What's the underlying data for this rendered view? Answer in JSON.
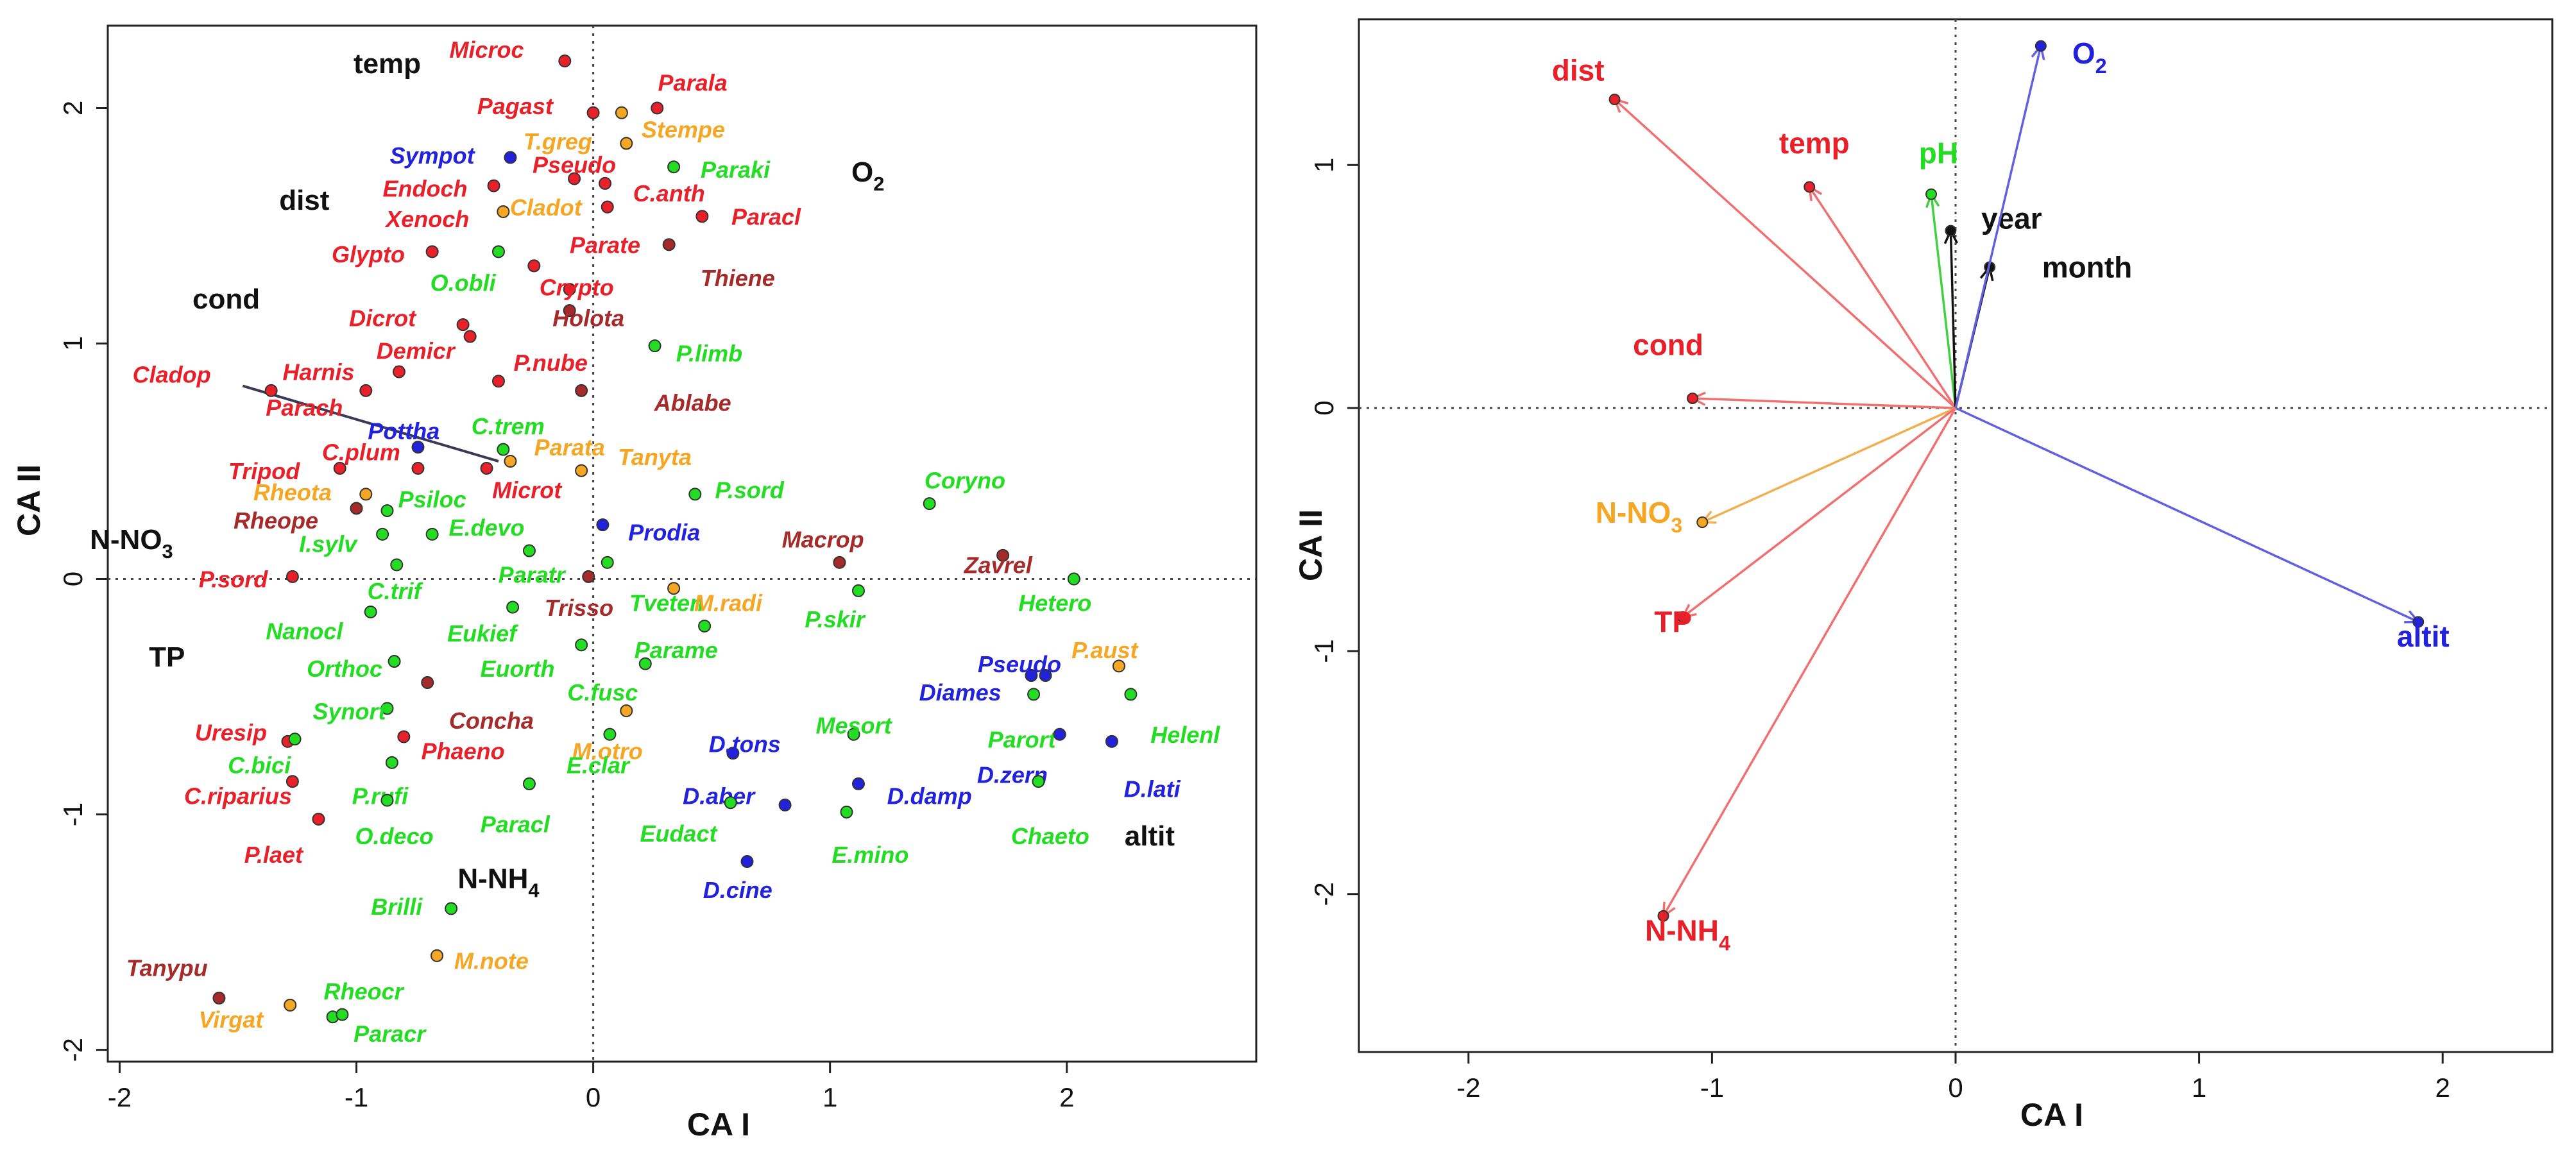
{
  "colors": {
    "red": "#e8202a",
    "darkred": "#a52a2a",
    "blue": "#2222dd",
    "green": "#22dd22",
    "orange": "#f5a623",
    "black": "#111111"
  },
  "chart_data": [
    {
      "type": "scatter",
      "title": "",
      "xlabel": "CA I",
      "ylabel": "CA II",
      "xlim": [
        -2.05,
        2.8
      ],
      "ylim": [
        -2.05,
        2.35
      ],
      "xticks": [
        "-2",
        "-1",
        "0",
        "1",
        "2"
      ],
      "yticks": [
        "-2",
        "-1",
        "0",
        "1",
        "2"
      ],
      "xtick_values": [
        -2,
        -1,
        0,
        1,
        2
      ],
      "ytick_values": [
        -2,
        -1,
        0,
        1,
        2
      ],
      "env_labels": [
        {
          "label": "temp",
          "x": -0.87,
          "y": 2.18
        },
        {
          "label": "dist",
          "x": -1.22,
          "y": 1.6
        },
        {
          "label": "cond",
          "x": -1.55,
          "y": 1.18
        },
        {
          "label": "O2",
          "x": 1.16,
          "y": 1.72
        },
        {
          "label": "N-NO3",
          "x": -1.95,
          "y": 0.16
        },
        {
          "label": "TP",
          "x": -1.8,
          "y": -0.34
        },
        {
          "label": "N-NH4",
          "x": -0.4,
          "y": -1.28
        },
        {
          "label": "altit",
          "x": 2.35,
          "y": -1.1
        }
      ],
      "arrow": {
        "x1": -1.48,
        "y1": 0.82,
        "x2": -0.4,
        "y2": 0.5
      },
      "points": [
        {
          "label": "Microc",
          "x": -0.12,
          "y": 2.2,
          "color": "red",
          "lx": -0.45,
          "ly": 2.24
        },
        {
          "label": "Pagast",
          "x": 0.0,
          "y": 1.98,
          "color": "red",
          "lx": -0.33,
          "ly": 2.0
        },
        {
          "label": "Parala",
          "x": 0.27,
          "y": 2.0,
          "color": "red",
          "lx": 0.42,
          "ly": 2.1
        },
        {
          "label": "Stempe",
          "x": 0.12,
          "y": 1.98,
          "color": "orange",
          "lx": 0.38,
          "ly": 1.9
        },
        {
          "label": "T.greg",
          "x": 0.14,
          "y": 1.85,
          "color": "orange",
          "lx": -0.15,
          "ly": 1.85
        },
        {
          "label": "Sympot",
          "x": -0.35,
          "y": 1.79,
          "color": "blue",
          "lx": -0.68,
          "ly": 1.79
        },
        {
          "label": "Pseudo",
          "x": -0.08,
          "y": 1.7,
          "color": "red",
          "lx": -0.08,
          "ly": 1.75
        },
        {
          "label": "Paraki",
          "x": 0.34,
          "y": 1.75,
          "color": "green",
          "lx": 0.6,
          "ly": 1.73
        },
        {
          "label": "Endoch",
          "x": -0.42,
          "y": 1.67,
          "color": "red",
          "lx": -0.71,
          "ly": 1.65
        },
        {
          "label": "C.anth",
          "x": 0.05,
          "y": 1.68,
          "color": "red",
          "lx": 0.32,
          "ly": 1.63
        },
        {
          "label": "Cladot",
          "x": -0.38,
          "y": 1.56,
          "color": "orange",
          "lx": -0.2,
          "ly": 1.57
        },
        {
          "label": "Xenoch",
          "x": 0.06,
          "y": 1.58,
          "color": "red",
          "lx": -0.7,
          "ly": 1.52
        },
        {
          "label": "Paracl",
          "x": 0.46,
          "y": 1.54,
          "color": "red",
          "lx": 0.73,
          "ly": 1.53
        },
        {
          "label": "Glypto",
          "x": -0.68,
          "y": 1.39,
          "color": "red",
          "lx": -0.95,
          "ly": 1.37
        },
        {
          "label": "O.obli",
          "x": -0.4,
          "y": 1.39,
          "color": "green",
          "lx": -0.55,
          "ly": 1.25
        },
        {
          "label": "Parate",
          "x": -0.25,
          "y": 1.33,
          "color": "red",
          "lx": 0.05,
          "ly": 1.41
        },
        {
          "label": "Thiene",
          "x": 0.32,
          "y": 1.42,
          "color": "darkred",
          "lx": 0.61,
          "ly": 1.27
        },
        {
          "label": "Crypto",
          "x": -0.1,
          "y": 1.23,
          "color": "red",
          "lx": -0.07,
          "ly": 1.23
        },
        {
          "label": "Holota",
          "x": -0.1,
          "y": 1.14,
          "color": "darkred",
          "lx": -0.02,
          "ly": 1.1
        },
        {
          "label": "Dicrot",
          "x": -0.55,
          "y": 1.08,
          "color": "red",
          "lx": -0.89,
          "ly": 1.1
        },
        {
          "label": "Demicr",
          "x": -0.52,
          "y": 1.03,
          "color": "red",
          "lx": -0.75,
          "ly": 0.96
        },
        {
          "label": "P.limb",
          "x": 0.26,
          "y": 0.99,
          "color": "green",
          "lx": 0.49,
          "ly": 0.95
        },
        {
          "label": "P.nube",
          "x": -0.4,
          "y": 0.84,
          "color": "red",
          "lx": -0.18,
          "ly": 0.91
        },
        {
          "label": "Harnis",
          "x": -0.96,
          "y": 0.8,
          "color": "red",
          "lx": -1.16,
          "ly": 0.87
        },
        {
          "label": "Ablabe",
          "x": -0.05,
          "y": 0.8,
          "color": "darkred",
          "lx": 0.42,
          "ly": 0.74
        },
        {
          "label": "Parach",
          "x": -0.82,
          "y": 0.88,
          "color": "red",
          "lx": -1.22,
          "ly": 0.72
        },
        {
          "label": "Cladop",
          "x": -1.36,
          "y": 0.8,
          "color": "red",
          "lx": -1.78,
          "ly": 0.86
        },
        {
          "label": "Pottha",
          "x": -0.74,
          "y": 0.56,
          "color": "blue",
          "lx": -0.8,
          "ly": 0.62
        },
        {
          "label": "C.trem",
          "x": -0.38,
          "y": 0.55,
          "color": "green",
          "lx": -0.36,
          "ly": 0.64
        },
        {
          "label": "Parata",
          "x": -0.35,
          "y": 0.5,
          "color": "orange",
          "lx": -0.1,
          "ly": 0.55
        },
        {
          "label": "Tanyta",
          "x": -0.05,
          "y": 0.46,
          "color": "orange",
          "lx": 0.26,
          "ly": 0.51
        },
        {
          "label": "C.plum",
          "x": -0.74,
          "y": 0.47,
          "color": "red",
          "lx": -0.98,
          "ly": 0.53
        },
        {
          "label": "Tripod",
          "x": -1.07,
          "y": 0.47,
          "color": "red",
          "lx": -1.39,
          "ly": 0.45
        },
        {
          "label": "Coryno",
          "x": 1.42,
          "y": 0.32,
          "color": "green",
          "lx": 1.57,
          "ly": 0.41
        },
        {
          "label": "Rheota",
          "x": -0.96,
          "y": 0.36,
          "color": "orange",
          "lx": -1.27,
          "ly": 0.36
        },
        {
          "label": "P.sord",
          "x": 0.43,
          "y": 0.36,
          "color": "green",
          "lx": 0.66,
          "ly": 0.37
        },
        {
          "label": "Microt",
          "x": -0.45,
          "y": 0.47,
          "color": "red",
          "lx": -0.28,
          "ly": 0.37
        },
        {
          "label": "Psiloc",
          "x": -0.87,
          "y": 0.29,
          "color": "green",
          "lx": -0.68,
          "ly": 0.33
        },
        {
          "label": "Rheope",
          "x": -1.0,
          "y": 0.3,
          "color": "darkred",
          "lx": -1.34,
          "ly": 0.24
        },
        {
          "label": "E.devo",
          "x": -0.68,
          "y": 0.19,
          "color": "green",
          "lx": -0.45,
          "ly": 0.21
        },
        {
          "label": "Prodia",
          "x": 0.04,
          "y": 0.23,
          "color": "blue",
          "lx": 0.3,
          "ly": 0.19
        },
        {
          "label": "I.sylv",
          "x": -0.89,
          "y": 0.19,
          "color": "green",
          "lx": -1.12,
          "ly": 0.14
        },
        {
          "label": "Macrop",
          "x": 1.04,
          "y": 0.07,
          "color": "darkred",
          "lx": 0.97,
          "ly": 0.16
        },
        {
          "label": "Zavrel",
          "x": 1.73,
          "y": 0.1,
          "color": "darkred",
          "lx": 1.71,
          "ly": 0.05
        },
        {
          "label": "P.sord",
          "x": -1.27,
          "y": 0.01,
          "color": "red",
          "lx": -1.52,
          "ly": -0.01
        },
        {
          "label": "Paratr",
          "x": -0.27,
          "y": 0.12,
          "color": "green",
          "lx": -0.26,
          "ly": 0.01
        },
        {
          "label": "C.trif",
          "x": -0.83,
          "y": 0.06,
          "color": "green",
          "lx": -0.84,
          "ly": -0.06
        },
        {
          "label": "Tveten",
          "x": 0.06,
          "y": 0.07,
          "color": "green",
          "lx": 0.31,
          "ly": -0.11
        },
        {
          "label": "Hetero",
          "x": 2.03,
          "y": 0.0,
          "color": "green",
          "lx": 1.95,
          "ly": -0.11
        },
        {
          "label": "M.radi",
          "x": 0.34,
          "y": -0.04,
          "color": "orange",
          "lx": 0.57,
          "ly": -0.11
        },
        {
          "label": "P.skir",
          "x": 1.12,
          "y": -0.05,
          "color": "green",
          "lx": 1.02,
          "ly": -0.18
        },
        {
          "label": "Trisso",
          "x": -0.02,
          "y": 0.01,
          "color": "darkred",
          "lx": -0.06,
          "ly": -0.13
        },
        {
          "label": "Nanocl",
          "x": -0.94,
          "y": -0.14,
          "color": "green",
          "lx": -1.22,
          "ly": -0.23
        },
        {
          "label": "Eukief",
          "x": -0.34,
          "y": -0.12,
          "color": "green",
          "lx": -0.47,
          "ly": -0.24
        },
        {
          "label": "Parame",
          "x": 0.47,
          "y": -0.2,
          "color": "green",
          "lx": 0.35,
          "ly": -0.31
        },
        {
          "label": "P.aust",
          "x": 2.22,
          "y": -0.37,
          "color": "orange",
          "lx": 2.16,
          "ly": -0.31
        },
        {
          "label": "Orthoc",
          "x": -0.84,
          "y": -0.35,
          "color": "green",
          "lx": -1.05,
          "ly": -0.39
        },
        {
          "label": "Euorth",
          "x": -0.05,
          "y": -0.28,
          "color": "green",
          "lx": -0.32,
          "ly": -0.39
        },
        {
          "label": "Pseudo",
          "x": 1.85,
          "y": -0.41,
          "color": "blue",
          "lx": 1.8,
          "ly": -0.37
        },
        {
          "label": "C.fusc",
          "x": 0.22,
          "y": -0.36,
          "color": "green",
          "lx": 0.04,
          "ly": -0.49
        },
        {
          "label": "Diames",
          "x": 1.91,
          "y": -0.41,
          "color": "blue",
          "lx": 1.55,
          "ly": -0.49
        },
        {
          "label": "Synort",
          "x": -0.87,
          "y": -0.55,
          "color": "green",
          "lx": -1.03,
          "ly": -0.57
        },
        {
          "label": "Concha",
          "x": -0.7,
          "y": -0.44,
          "color": "darkred",
          "lx": -0.43,
          "ly": -0.61
        },
        {
          "label": "Helenl",
          "x": 2.27,
          "y": -0.49,
          "color": "green",
          "lx": 2.5,
          "ly": -0.67
        },
        {
          "label": "Mesort",
          "x": 1.1,
          "y": -0.66,
          "color": "green",
          "lx": 1.1,
          "ly": -0.63
        },
        {
          "label": "Parort",
          "x": 1.86,
          "y": -0.49,
          "color": "green",
          "lx": 1.81,
          "ly": -0.69
        },
        {
          "label": "M.otro",
          "x": 0.14,
          "y": -0.56,
          "color": "orange",
          "lx": 0.06,
          "ly": -0.74
        },
        {
          "label": "D.tons",
          "x": 0.59,
          "y": -0.74,
          "color": "blue",
          "lx": 0.64,
          "ly": -0.71
        },
        {
          "label": "Uresip",
          "x": -1.29,
          "y": -0.69,
          "color": "red",
          "lx": -1.53,
          "ly": -0.66
        },
        {
          "label": "Phaeno",
          "x": -0.8,
          "y": -0.67,
          "color": "red",
          "lx": -0.55,
          "ly": -0.74
        },
        {
          "label": "D.zern",
          "x": 1.97,
          "y": -0.66,
          "color": "blue",
          "lx": 1.77,
          "ly": -0.84
        },
        {
          "label": "C.bici",
          "x": -1.26,
          "y": -0.68,
          "color": "green",
          "lx": -1.41,
          "ly": -0.8
        },
        {
          "label": "E.clar",
          "x": 0.07,
          "y": -0.66,
          "color": "green",
          "lx": 0.02,
          "ly": -0.8
        },
        {
          "label": "D.lati",
          "x": 2.19,
          "y": -0.69,
          "color": "blue",
          "lx": 2.36,
          "ly": -0.9
        },
        {
          "label": "P.rufi",
          "x": -0.85,
          "y": -0.78,
          "color": "green",
          "lx": -0.9,
          "ly": -0.93
        },
        {
          "label": "D.damp",
          "x": 1.12,
          "y": -0.87,
          "color": "blue",
          "lx": 1.42,
          "ly": -0.93
        },
        {
          "label": "D.aber",
          "x": 0.81,
          "y": -0.96,
          "color": "blue",
          "lx": 0.53,
          "ly": -0.93
        },
        {
          "label": "C.riparius",
          "x": -1.27,
          "y": -0.86,
          "color": "red",
          "lx": -1.5,
          "ly": -0.93
        },
        {
          "label": "Chaeto",
          "x": 1.88,
          "y": -0.86,
          "color": "green",
          "lx": 1.93,
          "ly": -1.1
        },
        {
          "label": "O.deco",
          "x": -0.87,
          "y": -0.94,
          "color": "green",
          "lx": -0.84,
          "ly": -1.1
        },
        {
          "label": "Paracl",
          "x": -0.27,
          "y": -0.87,
          "color": "green",
          "lx": -0.33,
          "ly": -1.05
        },
        {
          "label": "Eudact",
          "x": 0.58,
          "y": -0.95,
          "color": "green",
          "lx": 0.36,
          "ly": -1.09
        },
        {
          "label": "E.mino",
          "x": 1.07,
          "y": -0.99,
          "color": "green",
          "lx": 1.17,
          "ly": -1.18
        },
        {
          "label": "P.laet",
          "x": -1.16,
          "y": -1.02,
          "color": "red",
          "lx": -1.35,
          "ly": -1.18
        },
        {
          "label": "D.cine",
          "x": 0.65,
          "y": -1.2,
          "color": "blue",
          "lx": 0.61,
          "ly": -1.33
        },
        {
          "label": "Brilli",
          "x": -0.6,
          "y": -1.4,
          "color": "green",
          "lx": -0.83,
          "ly": -1.4
        },
        {
          "label": "M.note",
          "x": -0.66,
          "y": -1.6,
          "color": "orange",
          "lx": -0.43,
          "ly": -1.63
        },
        {
          "label": "Tanypu",
          "x": -1.58,
          "y": -1.78,
          "color": "darkred",
          "lx": -1.8,
          "ly": -1.66
        },
        {
          "label": "Rheocr",
          "x": -1.1,
          "y": -1.86,
          "color": "green",
          "lx": -0.97,
          "ly": -1.76
        },
        {
          "label": "Virgat",
          "x": -1.28,
          "y": -1.81,
          "color": "orange",
          "lx": -1.53,
          "ly": -1.88
        },
        {
          "label": "Paracr",
          "x": -1.06,
          "y": -1.85,
          "color": "green",
          "lx": -0.86,
          "ly": -1.94
        }
      ]
    },
    {
      "type": "scatter",
      "title": "",
      "xlabel": "CA I",
      "ylabel": "CA II",
      "xlim": [
        -2.45,
        2.45
      ],
      "ylim": [
        -2.65,
        1.6
      ],
      "xticks": [
        "-2",
        "-1",
        "0",
        "1",
        "2"
      ],
      "yticks": [
        "-2",
        "-1",
        "0",
        "1"
      ],
      "xtick_values": [
        -2,
        -1,
        0,
        1,
        2
      ],
      "ytick_values": [
        -2,
        -1,
        0,
        1
      ],
      "arrows": [
        {
          "label": "dist",
          "x": -1.4,
          "y": 1.27,
          "color": "red",
          "lx": -1.55,
          "ly": 1.38
        },
        {
          "label": "temp",
          "x": -0.6,
          "y": 0.91,
          "color": "red",
          "lx": -0.58,
          "ly": 1.08
        },
        {
          "label": "pH",
          "x": -0.1,
          "y": 0.88,
          "color": "green",
          "lx": -0.07,
          "ly": 1.04
        },
        {
          "label": "year",
          "x": -0.02,
          "y": 0.73,
          "color": "black",
          "lx": 0.23,
          "ly": 0.77
        },
        {
          "label": "month",
          "x": 0.14,
          "y": 0.58,
          "color": "black",
          "lx": 0.54,
          "ly": 0.57
        },
        {
          "label": "O2",
          "x": 0.35,
          "y": 1.49,
          "color": "blue",
          "lx": 0.55,
          "ly": 1.45
        },
        {
          "label": "cond",
          "x": -1.08,
          "y": 0.04,
          "color": "red",
          "lx": -1.18,
          "ly": 0.25
        },
        {
          "label": "N-NO3",
          "x": -1.04,
          "y": -0.47,
          "color": "orange",
          "lx": -1.3,
          "ly": -0.44
        },
        {
          "label": "TP",
          "x": -1.12,
          "y": -0.86,
          "color": "red",
          "lx": -1.16,
          "ly": -0.89
        },
        {
          "label": "altit",
          "x": 1.9,
          "y": -0.88,
          "color": "blue",
          "lx": 1.92,
          "ly": -0.95
        },
        {
          "label": "N-NH4",
          "x": -1.2,
          "y": -2.09,
          "color": "red",
          "lx": -1.1,
          "ly": -2.16
        }
      ]
    }
  ]
}
